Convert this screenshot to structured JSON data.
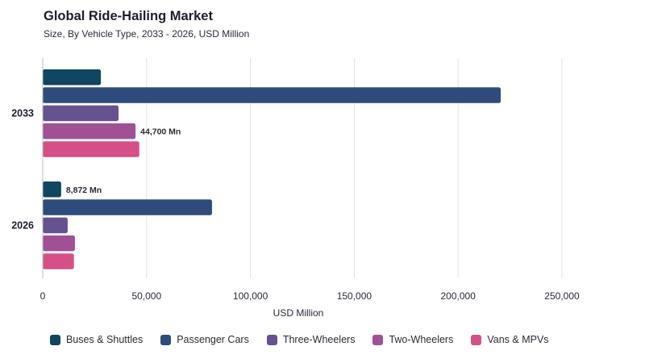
{
  "header": {
    "title": "Global Ride-Hailing Market",
    "subtitle": "Size, By Vehicle Type, 2033 - 2026, USD Million"
  },
  "chart_data": {
    "type": "bar",
    "orientation": "horizontal",
    "title": "Global Ride-Hailing Market",
    "subtitle": "Size, By Vehicle Type, 2033 - 2026, USD Million",
    "xlabel": "USD Million",
    "ylabel": "",
    "categories": [
      "2033",
      "2026"
    ],
    "xlim": [
      0,
      250000
    ],
    "xticks": [
      0,
      50000,
      100000,
      150000,
      200000,
      250000
    ],
    "xtick_labels": [
      "0",
      "50,000",
      "100,000",
      "150,000",
      "200,000",
      "250,000"
    ],
    "grid": "vertical",
    "legend_position": "bottom",
    "series": [
      {
        "name": "Buses & Shuttles",
        "color": "#0f4660",
        "values": [
          28000,
          8872
        ]
      },
      {
        "name": "Passenger Cars",
        "color": "#2f4b7c",
        "values": [
          220500,
          81500
        ]
      },
      {
        "name": "Three-Wheelers",
        "color": "#665191",
        "values": [
          36500,
          12000
        ]
      },
      {
        "name": "Two-Wheelers",
        "color": "#a05195",
        "values": [
          44700,
          15500
        ]
      },
      {
        "name": "Vans & MPVs",
        "color": "#d45087",
        "values": [
          46500,
          15000
        ]
      }
    ],
    "annotations": [
      {
        "category": "2033",
        "series": "Two-Wheelers",
        "text": "44,700 Mn"
      },
      {
        "category": "2026",
        "series": "Buses & Shuttles",
        "text": "8,872 Mn"
      }
    ]
  }
}
